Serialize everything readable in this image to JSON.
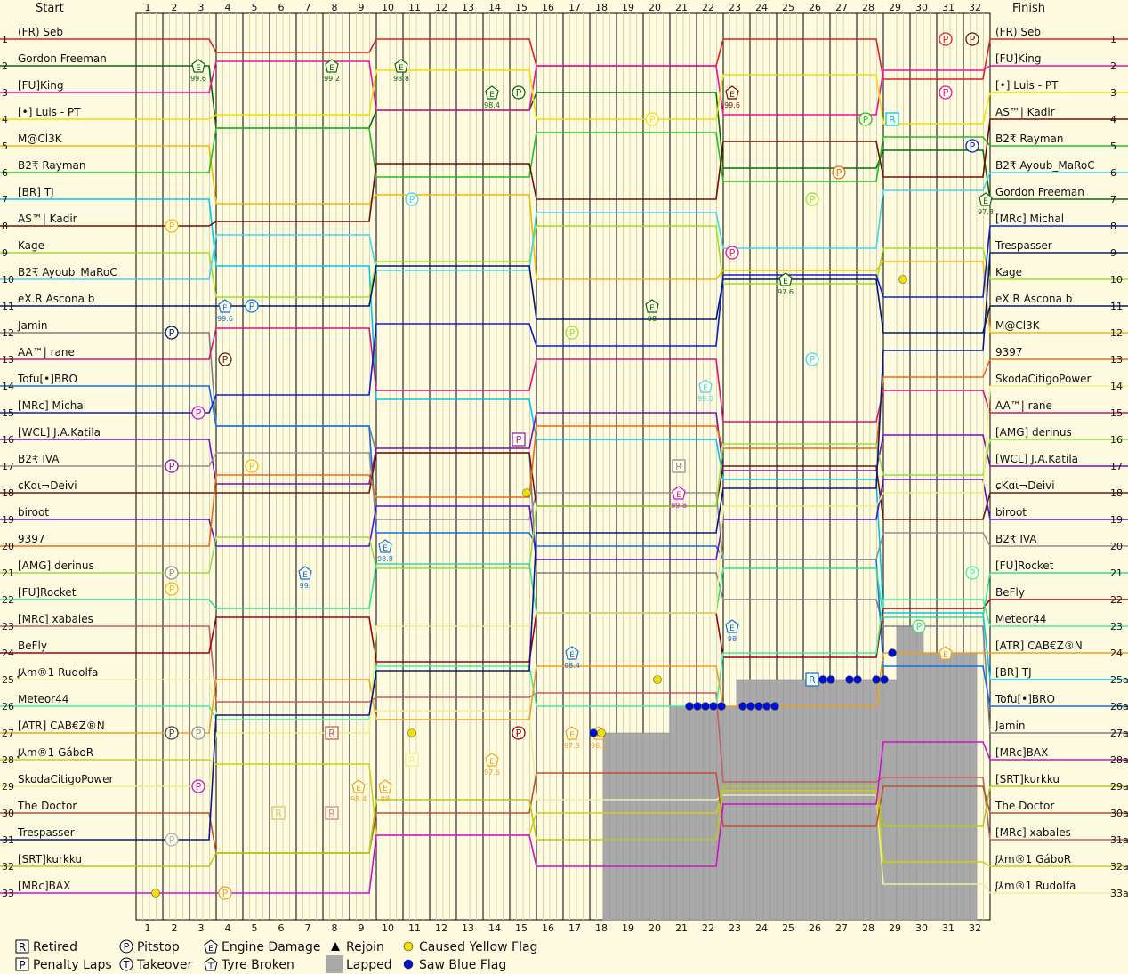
{
  "chart_data": {
    "type": "line",
    "start_label": "Start",
    "finish_label": "Finish",
    "laps": [
      1,
      2,
      3,
      4,
      5,
      6,
      7,
      8,
      9,
      10,
      11,
      12,
      13,
      14,
      15,
      16,
      17,
      18,
      19,
      20,
      21,
      22,
      23,
      24,
      25,
      26,
      27,
      28,
      29,
      30,
      31,
      32
    ],
    "start_positions": [
      {
        "pos": "1",
        "name": "(FR) Seb",
        "color": "#e02020"
      },
      {
        "pos": "2",
        "name": "Gordon Freeman",
        "color": "#0a6a0a"
      },
      {
        "pos": "3",
        "name": "[FU]King",
        "color": "#ee10a0"
      },
      {
        "pos": "4",
        "name": "[•] Luis - PT",
        "color": "#f0e000"
      },
      {
        "pos": "5",
        "name": "M@Cl3K",
        "color": "#f5b800"
      },
      {
        "pos": "6",
        "name": "B2₹ Rayman",
        "color": "#20c020"
      },
      {
        "pos": "7",
        "name": "[BR] TJ",
        "color": "#00c8e8"
      },
      {
        "pos": "8",
        "name": "AS™| Kadir",
        "color": "#701000"
      },
      {
        "pos": "9",
        "name": "Kage",
        "color": "#a0e020"
      },
      {
        "pos": "10",
        "name": "B2₹ Ayoub_MaRoC",
        "color": "#40d8f0"
      },
      {
        "pos": "11",
        "name": "eX.R Ascona b",
        "color": "#001a70"
      },
      {
        "pos": "12",
        "name": "Jamin",
        "color": "#808080"
      },
      {
        "pos": "13",
        "name": "AA™| rane",
        "color": "#e0107a"
      },
      {
        "pos": "14",
        "name": "Tofu[•]BRO",
        "color": "#1070e0"
      },
      {
        "pos": "15",
        "name": "[MRc] Michal",
        "color": "#0a20d0"
      },
      {
        "pos": "16",
        "name": "[WCL] J.A.Katila",
        "color": "#7a10b0"
      },
      {
        "pos": "17",
        "name": "B2₹ IVA",
        "color": "#909090"
      },
      {
        "pos": "18",
        "name": "ɕKɑι¬Deivi",
        "color": "#6a1a10"
      },
      {
        "pos": "19",
        "name": "biroot",
        "color": "#5a10d0"
      },
      {
        "pos": "20",
        "name": "9397",
        "color": "#f06a10"
      },
      {
        "pos": "21",
        "name": "[AMG] derinus",
        "color": "#90e040"
      },
      {
        "pos": "22",
        "name": "[FU]Rocket",
        "color": "#30e090"
      },
      {
        "pos": "23",
        "name": "[MRc] xabales",
        "color": "#c06060"
      },
      {
        "pos": "24",
        "name": "BeFly",
        "color": "#a00010"
      },
      {
        "pos": "25",
        "name": "ᶘ⅄m®1 Rudolfa",
        "color": "#f0f0a0"
      },
      {
        "pos": "26",
        "name": "Meteor44",
        "color": "#40f0a0"
      },
      {
        "pos": "27",
        "name": "[ATR] CAB€Z®N",
        "color": "#f0a020"
      },
      {
        "pos": "28",
        "name": "ᶘ⅄m®1 GáboR",
        "color": "#d0d010"
      },
      {
        "pos": "29",
        "name": "SkodaCitigoPower",
        "color": "#f0f080"
      },
      {
        "pos": "30",
        "name": "The Doctor",
        "color": "#c05030"
      },
      {
        "pos": "31",
        "name": "Trespasser",
        "color": "#0a1a80"
      },
      {
        "pos": "32",
        "name": "[SRT]kurkku",
        "color": "#b0d010"
      },
      {
        "pos": "33",
        "name": "[MRc]BAX",
        "color": "#d010d0"
      }
    ],
    "finish_positions": [
      {
        "pos": "1",
        "name": "(FR) Seb"
      },
      {
        "pos": "2",
        "name": "[FU]King"
      },
      {
        "pos": "3",
        "name": "[•] Luis - PT"
      },
      {
        "pos": "4",
        "name": "AS™| Kadir"
      },
      {
        "pos": "5",
        "name": "B2₹ Rayman"
      },
      {
        "pos": "6",
        "name": "B2₹ Ayoub_MaRoC"
      },
      {
        "pos": "7",
        "name": "Gordon Freeman"
      },
      {
        "pos": "8",
        "name": "[MRc] Michal"
      },
      {
        "pos": "9",
        "name": "Trespasser"
      },
      {
        "pos": "10",
        "name": "Kage"
      },
      {
        "pos": "11",
        "name": "eX.R Ascona b"
      },
      {
        "pos": "12",
        "name": "M@Cl3K"
      },
      {
        "pos": "13",
        "name": "9397"
      },
      {
        "pos": "14",
        "name": "SkodaCitigoPower"
      },
      {
        "pos": "15",
        "name": "AA™| rane"
      },
      {
        "pos": "16",
        "name": "[AMG] derinus"
      },
      {
        "pos": "17",
        "name": "[WCL] J.A.Katila"
      },
      {
        "pos": "18",
        "name": "ɕKɑι¬Deivi"
      },
      {
        "pos": "19",
        "name": "biroot"
      },
      {
        "pos": "20",
        "name": "B2₹ IVA"
      },
      {
        "pos": "21",
        "name": "[FU]Rocket"
      },
      {
        "pos": "22",
        "name": "BeFly"
      },
      {
        "pos": "23",
        "name": "Meteor44"
      },
      {
        "pos": "24",
        "name": "[ATR] CAB€Z®N"
      },
      {
        "pos": "25a",
        "name": "[BR] TJ"
      },
      {
        "pos": "26a",
        "name": "Tofu[•]BRO"
      },
      {
        "pos": "27a",
        "name": "Jamin"
      },
      {
        "pos": "28a",
        "name": "[MRc]BAX"
      },
      {
        "pos": "29a",
        "name": "[SRT]kurkku"
      },
      {
        "pos": "30a",
        "name": "The Doctor"
      },
      {
        "pos": "31a",
        "name": "[MRc] xabales"
      },
      {
        "pos": "32a",
        "name": "ᶘ⅄m®1 GáboR"
      },
      {
        "pos": "33a",
        "name": "ᶘ⅄m®1 Rudolfa"
      }
    ],
    "lapped_region": [
      {
        "lap_from": 17.5,
        "lap_to": 20,
        "lapped_from_pos": 27
      },
      {
        "lap_from": 20,
        "lap_to": 22.5,
        "lapped_from_pos": 26
      },
      {
        "lap_from": 22.5,
        "lap_to": 28.5,
        "lapped_from_pos": 25
      },
      {
        "lap_from": 28.5,
        "lap_to": 29.5,
        "lapped_from_pos": 23
      },
      {
        "lap_from": 29.5,
        "lap_to": 31.5,
        "lapped_from_pos": 24
      }
    ],
    "events": [
      {
        "type": "pitstop",
        "lap": 30,
        "pos": 1,
        "color": "#e02020"
      },
      {
        "type": "pitstop",
        "lap": 31,
        "pos": 1,
        "color": "#701000"
      },
      {
        "type": "pitstop",
        "lap": 30,
        "pos": 3,
        "color": "#ee10a0"
      },
      {
        "type": "pitstop",
        "lap": 14,
        "pos": 3,
        "color": "#0a6a0a"
      },
      {
        "type": "pitstop",
        "lap": 19,
        "pos": 4,
        "color": "#f0e000"
      },
      {
        "type": "pitstop",
        "lap": 27,
        "pos": 4,
        "color": "#20c020"
      },
      {
        "type": "retired",
        "lap": 28,
        "pos": 4,
        "color": "#00c8e8"
      },
      {
        "type": "pitstop",
        "lap": 31,
        "pos": 5,
        "color": "#0a20d0"
      },
      {
        "type": "pitstop",
        "lap": 26,
        "pos": 6,
        "color": "#f06a10"
      },
      {
        "type": "pitstop",
        "lap": 10,
        "pos": 7,
        "color": "#40d8f0"
      },
      {
        "type": "pitstop",
        "lap": 25,
        "pos": 7,
        "color": "#a0e020"
      },
      {
        "type": "pitstop",
        "lap": 1,
        "pos": 8,
        "color": "#f5b800"
      },
      {
        "type": "pitstop",
        "lap": 22,
        "pos": 9,
        "color": "#ee10a0"
      },
      {
        "type": "pitstop",
        "lap": 4,
        "pos": 11,
        "color": "#1070e0"
      },
      {
        "type": "pitstop",
        "lap": 1,
        "pos": 12,
        "color": "#001a70"
      },
      {
        "type": "pitstop",
        "lap": 16,
        "pos": 12,
        "color": "#a0e020"
      },
      {
        "type": "pitstop",
        "lap": 3,
        "pos": 13,
        "color": "#6a1a10"
      },
      {
        "type": "pitstop",
        "lap": 25,
        "pos": 13,
        "color": "#40d8f0"
      },
      {
        "type": "pitstop",
        "lap": 2,
        "pos": 15,
        "color": "#d010d0"
      },
      {
        "type": "penalty",
        "lap": 14,
        "pos": 16,
        "color": "#a020c0"
      },
      {
        "type": "pitstop",
        "lap": 1,
        "pos": 17,
        "color": "#7a10b0"
      },
      {
        "type": "pitstop",
        "lap": 4,
        "pos": 17,
        "color": "#f5b800"
      },
      {
        "type": "retired",
        "lap": 20,
        "pos": 17,
        "color": "#909090"
      },
      {
        "type": "pitstop",
        "lap": 1,
        "pos": 21,
        "color": "#909090"
      },
      {
        "type": "pitstop",
        "lap": 1,
        "pos": 21.6,
        "color": "#f5b800"
      },
      {
        "type": "pitstop",
        "lap": 31,
        "pos": 21,
        "color": "#40f0a0"
      },
      {
        "type": "pitstop",
        "lap": 29,
        "pos": 23,
        "color": "#30e090"
      },
      {
        "type": "pitstop",
        "lap": 1,
        "pos": 27,
        "color": "#404040"
      },
      {
        "type": "pitstop",
        "lap": 2,
        "pos": 27,
        "color": "#909090"
      },
      {
        "type": "pitstop",
        "lap": 14,
        "pos": 27,
        "color": "#a00010"
      },
      {
        "type": "retired",
        "lap": 7,
        "pos": 27,
        "color": "#c06060"
      },
      {
        "type": "retired",
        "lap": 10,
        "pos": 28,
        "color": "#f0f080"
      },
      {
        "type": "pitstop",
        "lap": 2,
        "pos": 29,
        "color": "#d010d0"
      },
      {
        "type": "retired",
        "lap": 5,
        "pos": 30,
        "color": "#e0c060"
      },
      {
        "type": "retired",
        "lap": 7,
        "pos": 30,
        "color": "#e08080"
      },
      {
        "type": "pitstop",
        "lap": 1,
        "pos": 31,
        "color": "#b0b0b0"
      },
      {
        "type": "pitstop",
        "lap": 3,
        "pos": 33,
        "color": "#f0a020"
      },
      {
        "type": "retired",
        "lap": 25,
        "pos": 25,
        "color": "#1070e0"
      },
      {
        "type": "engine",
        "lap": 2,
        "pos": 2,
        "label": "99.6",
        "color": "#0a6a0a"
      },
      {
        "type": "engine",
        "lap": 7,
        "pos": 2,
        "label": "99.2",
        "color": "#0a6a0a"
      },
      {
        "type": "engine",
        "lap": 9.6,
        "pos": 2,
        "label": "98.8",
        "color": "#0a6a0a"
      },
      {
        "type": "engine",
        "lap": 13,
        "pos": 3,
        "label": "98.4",
        "color": "#0a6a0a"
      },
      {
        "type": "engine",
        "lap": 22,
        "pos": 3,
        "label": "99.6",
        "color": "#701000"
      },
      {
        "type": "engine",
        "lap": 3,
        "pos": 11,
        "label": "99.6",
        "color": "#1070e0"
      },
      {
        "type": "engine",
        "lap": 24,
        "pos": 10,
        "label": "97.6",
        "color": "#0a6a0a"
      },
      {
        "type": "engine",
        "lap": 19,
        "pos": 11,
        "label": "98",
        "color": "#0a6a0a"
      },
      {
        "type": "engine",
        "lap": 21,
        "pos": 14,
        "label": "99.6",
        "color": "#40d8f0"
      },
      {
        "type": "engine",
        "lap": 20,
        "pos": 18,
        "label": "99.8",
        "color": "#d010d0"
      },
      {
        "type": "engine",
        "lap": 9,
        "pos": 20,
        "label": "98.8",
        "color": "#1070e0"
      },
      {
        "type": "engine",
        "lap": 6,
        "pos": 21,
        "label": "99.",
        "color": "#1070e0"
      },
      {
        "type": "engine",
        "lap": 16,
        "pos": 24,
        "label": "98.4",
        "color": "#1070e0"
      },
      {
        "type": "engine",
        "lap": 22,
        "pos": 23,
        "label": "98",
        "color": "#1070e0"
      },
      {
        "type": "engine",
        "lap": 8,
        "pos": 29,
        "label": "98.4",
        "color": "#f0a020"
      },
      {
        "type": "engine",
        "lap": 9,
        "pos": 29,
        "label": "98",
        "color": "#f0a020"
      },
      {
        "type": "engine",
        "lap": 13,
        "pos": 28,
        "label": "97.6",
        "color": "#f0a020"
      },
      {
        "type": "engine",
        "lap": 16,
        "pos": 27,
        "label": "97.3",
        "color": "#f0a020"
      },
      {
        "type": "engine",
        "lap": 17,
        "pos": 27,
        "label": "96.9",
        "color": "#f0a020"
      },
      {
        "type": "engine",
        "lap": 31.5,
        "pos": 7,
        "label": "97.3",
        "color": "#0a6a0a"
      },
      {
        "type": "engine",
        "lap": 30,
        "pos": 24,
        "label": "",
        "color": "#f0a020"
      },
      {
        "type": "yellow",
        "lap": 0.4,
        "pos": 33
      },
      {
        "type": "yellow",
        "lap": 10,
        "pos": 27
      },
      {
        "type": "yellow",
        "lap": 14.3,
        "pos": 18
      },
      {
        "type": "yellow",
        "lap": 17.1,
        "pos": 27
      },
      {
        "type": "yellow",
        "lap": 19.2,
        "pos": 25
      },
      {
        "type": "yellow",
        "lap": 28.4,
        "pos": 10
      },
      {
        "type": "blue",
        "lap": 16.8,
        "pos": 27
      },
      {
        "type": "blue",
        "lap": 20.4,
        "pos": 26
      },
      {
        "type": "blue",
        "lap": 20.7,
        "pos": 26
      },
      {
        "type": "blue",
        "lap": 21,
        "pos": 26
      },
      {
        "type": "blue",
        "lap": 21.3,
        "pos": 26
      },
      {
        "type": "blue",
        "lap": 21.6,
        "pos": 26
      },
      {
        "type": "blue",
        "lap": 22.4,
        "pos": 26
      },
      {
        "type": "blue",
        "lap": 22.7,
        "pos": 26
      },
      {
        "type": "blue",
        "lap": 23,
        "pos": 26
      },
      {
        "type": "blue",
        "lap": 23.3,
        "pos": 26
      },
      {
        "type": "blue",
        "lap": 23.6,
        "pos": 26
      },
      {
        "type": "blue",
        "lap": 25.4,
        "pos": 25
      },
      {
        "type": "blue",
        "lap": 25.7,
        "pos": 25
      },
      {
        "type": "blue",
        "lap": 26.4,
        "pos": 25
      },
      {
        "type": "blue",
        "lap": 26.7,
        "pos": 25
      },
      {
        "type": "blue",
        "lap": 27.4,
        "pos": 25
      },
      {
        "type": "blue",
        "lap": 27.7,
        "pos": 25
      },
      {
        "type": "blue",
        "lap": 28,
        "pos": 24
      }
    ]
  },
  "legend": [
    {
      "key": "retired",
      "icon": "square-R-icon",
      "label": "Retired"
    },
    {
      "key": "penalty",
      "icon": "square-P-icon",
      "label": "Penalty Laps"
    },
    {
      "key": "pitstop",
      "icon": "circle-P-icon",
      "label": "Pitstop"
    },
    {
      "key": "takeover",
      "icon": "circle-T-icon",
      "label": "Takeover"
    },
    {
      "key": "engine",
      "icon": "pentagon-E-icon",
      "label": "Engine Damage"
    },
    {
      "key": "tyre",
      "icon": "pentagon-T-icon",
      "label": "Tyre Broken"
    },
    {
      "key": "rejoin",
      "icon": "triangle-icon",
      "label": "Rejoin"
    },
    {
      "key": "lapped",
      "icon": "grey-box-icon",
      "label": "Lapped"
    },
    {
      "key": "yellow",
      "icon": "yellow-dot-icon",
      "label": "Caused Yellow Flag"
    },
    {
      "key": "blue",
      "icon": "blue-dot-icon",
      "label": "Saw Blue Flag"
    }
  ]
}
